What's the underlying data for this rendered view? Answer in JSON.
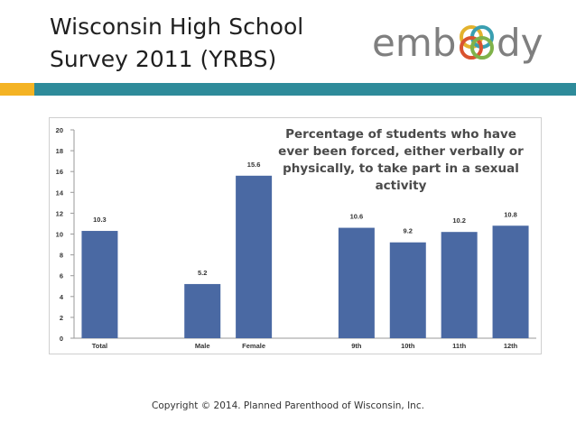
{
  "slide": {
    "title_line1": "Wisconsin High School",
    "title_line2": "Survey 2011 (YRBS)",
    "footer": "Copyright © 2014. Planned Parenthood of Wisconsin, Inc."
  },
  "logo": {
    "text_left": "emb",
    "text_right": "dy",
    "ring_colors": [
      "#e3b22d",
      "#3a9fb1",
      "#d9532f",
      "#7fb24a"
    ]
  },
  "colors": {
    "band_left": "#f4b324",
    "band_right": "#2e8b9a",
    "bar": "#4a69a3"
  },
  "chart_data": {
    "type": "bar",
    "title": "Percentage of students who have ever been forced, either verbally or physically, to take part in a sexual activity",
    "categories": [
      "Total",
      "",
      "Male",
      "Female",
      "",
      "9th",
      "10th",
      "11th",
      "12th"
    ],
    "values": [
      10.3,
      null,
      5.2,
      15.6,
      null,
      10.6,
      9.2,
      10.2,
      10.8
    ],
    "value_labels": [
      "10.3",
      "",
      "5.2",
      "15.6",
      "",
      "10.6",
      "9.2",
      "10.2",
      "10.8"
    ],
    "yticks": [
      0,
      2,
      4,
      6,
      8,
      10,
      12,
      14,
      16,
      18,
      20
    ],
    "ylim": [
      0,
      20
    ],
    "xlabel": "",
    "ylabel": "",
    "grid": false,
    "legend": "none"
  }
}
